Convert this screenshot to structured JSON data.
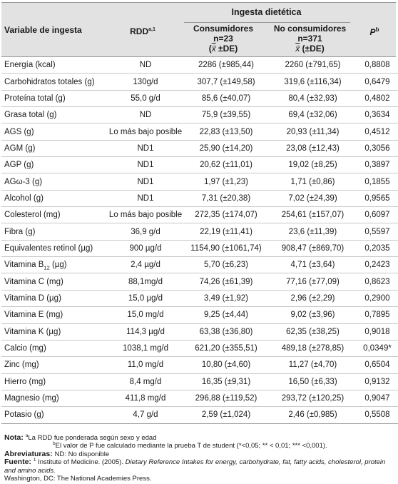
{
  "header": {
    "variable": "Variable de ingesta",
    "rdd": "RDD",
    "rdd_sup": "a,1",
    "group": "Ingesta dietética",
    "consumers_title": "Consumidores",
    "consumers_n": "n=23",
    "consumers_stat_pre": "(",
    "consumers_stat_x": "x̄",
    "consumers_stat_post": " ±DE)",
    "nonconsumers_title": "No consumidores",
    "nonconsumers_n": "n=371",
    "nonconsumers_stat_pre": "",
    "nonconsumers_stat_x": "x̄",
    "nonconsumers_stat_post": " (±DE)",
    "p": "P",
    "p_sup": "b"
  },
  "rows": [
    {
      "variable": "Energía (kcal)",
      "rdd": "ND",
      "consumers": "2286 (±985,44)",
      "nonconsumers": "2260 (±791,65)",
      "p": "0,8808"
    },
    {
      "variable": "Carbohidratos totales (g)",
      "rdd": "130g/d",
      "consumers": "307,7 (±149,58)",
      "nonconsumers": "319,6 (±116,34)",
      "p": "0,6479"
    },
    {
      "variable": "Proteína total (g)",
      "rdd": "55,0 g/d",
      "consumers": "85,6 (±40,07)",
      "nonconsumers": "80,4 (±32,93)",
      "p": "0,4802"
    },
    {
      "variable": "Grasa total (g)",
      "rdd": "ND",
      "consumers": "75,9 (±39,55)",
      "nonconsumers": "69,4 (±32,06)",
      "p": "0,3634"
    },
    {
      "variable": "AGS (g)",
      "rdd": "Lo más bajo posible",
      "consumers": "22,83 (±13,50)",
      "nonconsumers": "20,93 (±11,34)",
      "p": "0,4512"
    },
    {
      "variable": "AGM (g)",
      "rdd": "ND1",
      "consumers": "25,90 (±14,20)",
      "nonconsumers": "23,08 (±12,43)",
      "p": "0,3056"
    },
    {
      "variable": "AGP (g)",
      "rdd": "ND1",
      "consumers": "20,62 (±11,01)",
      "nonconsumers": "19,02 (±8,25)",
      "p": "0,3897"
    },
    {
      "variable": "AGω-3 (g)",
      "rdd": "ND1",
      "consumers": "1,97 (±1,23)",
      "nonconsumers": "1,71 (±0,86)",
      "p": "0,1855"
    },
    {
      "variable": "Alcohol (g)",
      "rdd": "ND1",
      "consumers": "7,31 (±20,38)",
      "nonconsumers": "7,02 (±24,39)",
      "p": "0,9565"
    },
    {
      "variable": "Colesterol (mg)",
      "rdd": "Lo más bajo posible",
      "consumers": "272,35 (±174,07)",
      "nonconsumers": "254,61 (±157,07)",
      "p": "0,6097"
    },
    {
      "variable": "Fibra (g)",
      "rdd": "36,9 g/d",
      "consumers": "22,19 (±11,41)",
      "nonconsumers": "23,6 (±11,39)",
      "p": "0,5597"
    },
    {
      "variable": "Equivalentes retinol (µg)",
      "rdd": "900 µg/d",
      "consumers": "1154,90 (±1061,74)",
      "nonconsumers": "908,47 (±869,70)",
      "p": "0,2035"
    },
    {
      "variable_pre": "Vitamina B",
      "variable_sub": "12",
      "variable_post": " (µg)",
      "rdd": "2,4 µg/d",
      "consumers": "5,70 (±6,23)",
      "nonconsumers": "4,71 (±3,64)",
      "p": "0,2423"
    },
    {
      "variable": "Vitamina C (mg)",
      "rdd": "88,1mg/d",
      "consumers": "74,26 (±61,39)",
      "nonconsumers": "77,16 (±77,09)",
      "p": "0,8623"
    },
    {
      "variable": "Vitamina D (µg)",
      "rdd": "15,0 µg/d",
      "consumers": "3,49 (±1,92)",
      "nonconsumers": "2,96 (±2,29)",
      "p": "0,2900"
    },
    {
      "variable": "Vitamina E (mg)",
      "rdd": "15,0 mg/d",
      "consumers": "9,25 (±4,44)",
      "nonconsumers": "9,02 (±3,96)",
      "p": "0,7895"
    },
    {
      "variable": "Vitamina K (µg)",
      "rdd": "114,3 µg/d",
      "consumers": "63,38 (±36,80)",
      "nonconsumers": "62,35 (±38,25)",
      "p": "0,9018"
    },
    {
      "variable": "Calcio (mg)",
      "rdd": "1038,1 mg/d",
      "consumers": "621,20 (±355,51)",
      "nonconsumers": "489,18 (±278,85)",
      "p": "0,0349*"
    },
    {
      "variable": "Zinc (mg)",
      "rdd": "11,0 mg/d",
      "consumers": "10,80 (±4,60)",
      "nonconsumers": "11,27 (±4,70)",
      "p": "0,6504"
    },
    {
      "variable": "Hierro (mg)",
      "rdd": "8,4 mg/d",
      "consumers": "16,35 (±9,31)",
      "nonconsumers": "16,50 (±6,33)",
      "p": "0,9132"
    },
    {
      "variable": "Magnesio (mg)",
      "rdd": "411,8 mg/d",
      "consumers": "296,88 (±119,52)",
      "nonconsumers": "293,72 (±120,25)",
      "p": "0,9047"
    },
    {
      "variable": "Potasio (g)",
      "rdd": "4,7 g/d",
      "consumers": "2,59 (±1,024)",
      "nonconsumers": "2,46 (±0,985)",
      "p": "0,5508"
    }
  ],
  "notes": {
    "nota_label": "Nota",
    "nota_a_sup": "a",
    "nota_a": "La RDD fue ponderada según sexo y edad",
    "nota_b_sup": "b",
    "nota_b": "El valor de P fue calculado mediante la prueba T de student (*<0,05; ** < 0,01; *** <0,001).",
    "abbr_label": "Abreviaturas",
    "abbr": "ND: No disponible",
    "source_label": "Fuente",
    "source_sup": "1",
    "source_pre": "Institute of Medicine. (2005). ",
    "source_title": "Dietary Reference Intakes for energy, carbohydrate, fat, fatty acids, cholesterol, protein and amino acids.",
    "source_post": "Washington, DC: The National Academies Press."
  }
}
